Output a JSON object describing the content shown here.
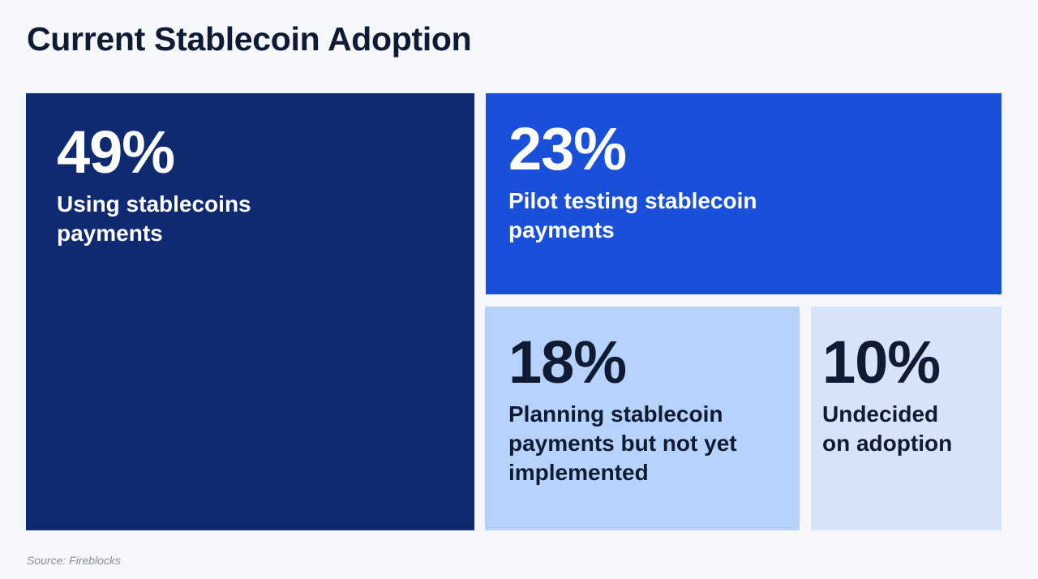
{
  "title": "Current Stablecoin Adoption",
  "source": "Source: Fireblocks",
  "chart_data": {
    "type": "treemap",
    "title": "Current Stablecoin Adoption",
    "series": [
      {
        "name": "Using stablecoins payments",
        "value": 49,
        "label": "49%",
        "desc_lines": [
          "Using stablecoins",
          "payments"
        ],
        "color": "#0F2A70"
      },
      {
        "name": "Pilot testing stablecoin payments",
        "value": 23,
        "label": "23%",
        "desc_lines": [
          "Pilot testing stablecoin",
          "payments"
        ],
        "color": "#1A4FD9"
      },
      {
        "name": "Planning stablecoin payments but not yet implemented",
        "value": 18,
        "label": "18%",
        "desc_lines": [
          "Planning stablecoin",
          "payments but not yet",
          "implemented"
        ],
        "color": "#B8D3FB"
      },
      {
        "name": "Undecided on adoption",
        "value": 10,
        "label": "10%",
        "desc_lines": [
          "Undecided",
          "on adoption"
        ],
        "color": "#D6E4F8"
      }
    ]
  }
}
